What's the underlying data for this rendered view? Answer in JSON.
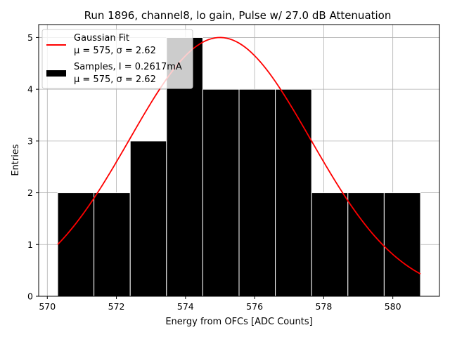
{
  "chart_data": {
    "type": "bar",
    "title": "Run 1896, channel8, lo gain, Pulse w/ 27.0 dB Attenuation",
    "xlabel": "Energy from OFCs [ADC Counts]",
    "ylabel": "Entries",
    "xlim": [
      569.75,
      581.35
    ],
    "ylim": [
      0,
      5.25
    ],
    "xticks": [
      570,
      572,
      574,
      576,
      578,
      580
    ],
    "yticks": [
      0,
      1,
      2,
      3,
      4,
      5
    ],
    "grid": true,
    "legend_placement": "upper-left",
    "histogram": {
      "name": "Samples, I = 0.2617mA",
      "stats": "μ = 575, σ = 2.62",
      "color": "#000000",
      "bin_edges": [
        570.3,
        571.35,
        572.4,
        573.45,
        574.5,
        575.55,
        576.6,
        577.65,
        578.7,
        579.75,
        580.8
      ],
      "counts": [
        2,
        2,
        3,
        5,
        4,
        4,
        4,
        2,
        2,
        2
      ]
    },
    "fit": {
      "name": "Gaussian Fit",
      "stats": "μ = 575, σ = 2.62",
      "color": "#ff0000",
      "mu": 575.0,
      "sigma": 2.62,
      "amplitude": 5.0,
      "x_range": [
        570.3,
        580.8
      ]
    }
  }
}
